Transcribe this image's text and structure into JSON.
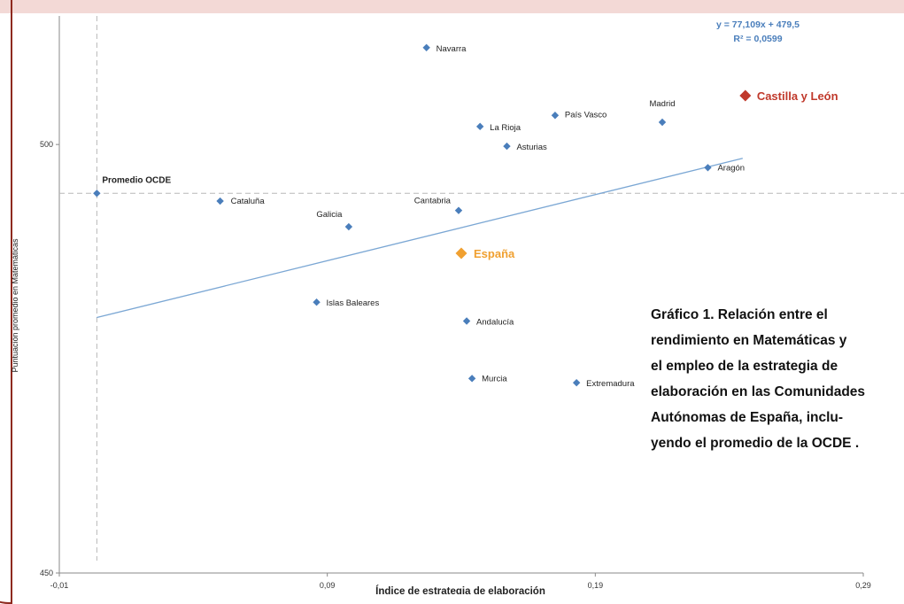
{
  "chart_data": {
    "type": "scatter",
    "title_lines": [
      "Gráfico 1. Relación entre el",
      "rendimiento en Matemáticas y",
      "el empleo de la estrategia de",
      "elaboración en las Comunidades",
      "Autónomas de España, inclu-",
      "yendo el promedio de la OCDE ."
    ],
    "xlabel": "Índice de estrategia de elaboración",
    "ylabel": "Puntuación promedio en Matemáticas",
    "xlim": [
      -0.01,
      0.29
    ],
    "ylim": [
      450,
      515
    ],
    "xticks": [
      {
        "value": -0.01,
        "label": "-0,01"
      },
      {
        "value": 0.09,
        "label": "0,09"
      },
      {
        "value": 0.19,
        "label": "0,19"
      },
      {
        "value": 0.29,
        "label": "0,29"
      }
    ],
    "yticks": [
      {
        "value": 450,
        "label": "450"
      },
      {
        "value": 500,
        "label": "500"
      }
    ],
    "reference_lines": {
      "oecd_x": 0.004,
      "oecd_y": 494.3
    },
    "trendline": {
      "equation": "y = 77,109x + 479,5",
      "r2": "R² = 0,0599",
      "slope": 77.109,
      "intercept": 479.5,
      "x_range": [
        0.004,
        0.245
      ],
      "color": "#7ba7d4"
    },
    "points": [
      {
        "label": "Navarra",
        "x": 0.127,
        "y": 511.3,
        "kind": "region"
      },
      {
        "label": "Castilla y León",
        "x": 0.246,
        "y": 505.7,
        "kind": "highlight"
      },
      {
        "label": "País Vasco",
        "x": 0.175,
        "y": 503.4,
        "kind": "region"
      },
      {
        "label": "Madrid",
        "x": 0.215,
        "y": 502.6,
        "kind": "region"
      },
      {
        "label": "La Rioja",
        "x": 0.147,
        "y": 502.1,
        "kind": "region"
      },
      {
        "label": "Asturias",
        "x": 0.157,
        "y": 499.8,
        "kind": "region"
      },
      {
        "label": "Aragón",
        "x": 0.232,
        "y": 497.3,
        "kind": "region"
      },
      {
        "label": "Promedio  OCDE",
        "x": 0.004,
        "y": 494.3,
        "kind": "oecd"
      },
      {
        "label": "Cataluña",
        "x": 0.05,
        "y": 493.4,
        "kind": "region"
      },
      {
        "label": "Cantabria",
        "x": 0.139,
        "y": 492.3,
        "kind": "region"
      },
      {
        "label": "Galicia",
        "x": 0.098,
        "y": 490.4,
        "kind": "region"
      },
      {
        "label": "España",
        "x": 0.14,
        "y": 487.3,
        "kind": "spain"
      },
      {
        "label": "Islas Baleares",
        "x": 0.086,
        "y": 481.6,
        "kind": "region"
      },
      {
        "label": "Andalucía",
        "x": 0.142,
        "y": 479.4,
        "kind": "region"
      },
      {
        "label": "Murcia",
        "x": 0.144,
        "y": 472.7,
        "kind": "region"
      },
      {
        "label": "Extremadura",
        "x": 0.183,
        "y": 472.2,
        "kind": "region"
      }
    ],
    "colors": {
      "region": "#4a7ebb",
      "highlight": "#c0392b",
      "spain": "#f0a030",
      "oecd": "#4a7ebb",
      "refline": "#b8b8b8",
      "axis": "#8a8a8a"
    }
  }
}
